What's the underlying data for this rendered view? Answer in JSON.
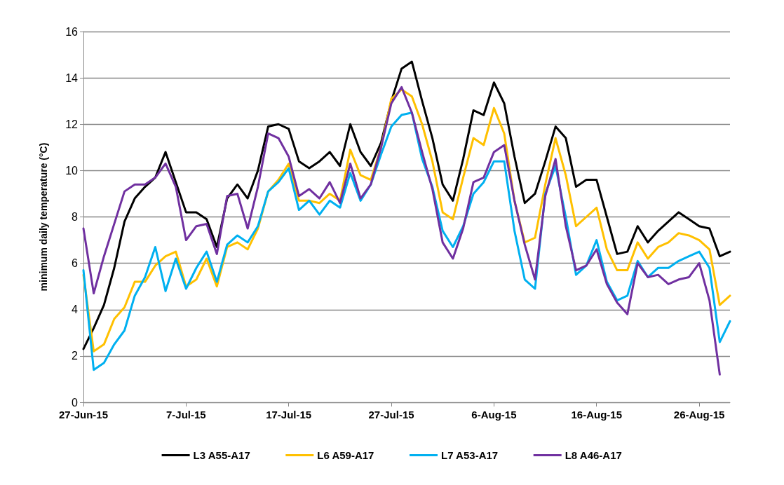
{
  "chart_data": {
    "type": "line",
    "ylabel": "minimum daily temperature (°C)",
    "x": [
      "--06-27",
      "--06-28",
      "--06-29",
      "--06-30",
      "--07-01",
      "--07-02",
      "--07-03",
      "--07-04",
      "--07-05",
      "--07-06",
      "--07-07",
      "--07-08",
      "--07-09",
      "--07-10",
      "--07-11",
      "--07-12",
      "--07-13",
      "--07-14",
      "--07-15",
      "--07-16",
      "--07-17",
      "--07-18",
      "--07-19",
      "--07-20",
      "--07-21",
      "--07-22",
      "--07-23",
      "--07-24",
      "--07-25",
      "--07-26",
      "--07-27",
      "--07-28",
      "--07-29",
      "--07-30",
      "--07-31",
      "--08-01",
      "--08-02",
      "--08-03",
      "--08-04",
      "--08-05",
      "--08-06",
      "--08-07",
      "--08-08",
      "--08-09",
      "--08-10",
      "--08-11",
      "--08-12",
      "--08-13",
      "--08-14",
      "--08-15",
      "--08-16",
      "--08-17",
      "--08-18",
      "--08-19",
      "--08-20",
      "--08-21",
      "--08-22",
      "--08-23",
      "--08-24",
      "--08-25",
      "--08-26",
      "--08-27",
      "--08-28",
      "--08-29"
    ],
    "series": [
      {
        "name": "L3 A55-A17",
        "color": "#000000",
        "values": [
          2.3,
          3.2,
          4.2,
          5.8,
          7.8,
          8.8,
          9.3,
          9.7,
          10.8,
          9.5,
          8.2,
          8.2,
          7.9,
          6.7,
          8.8,
          9.4,
          8.8,
          10.0,
          11.9,
          12.0,
          11.8,
          10.4,
          10.1,
          10.4,
          10.8,
          10.2,
          12.0,
          10.8,
          10.2,
          11.2,
          13.0,
          14.4,
          14.7,
          13.0,
          11.4,
          9.4,
          8.7,
          10.5,
          12.6,
          12.4,
          13.8,
          12.9,
          10.6,
          8.6,
          9.0,
          10.4,
          11.9,
          11.4,
          9.3,
          9.6,
          9.6,
          8.0,
          6.4,
          6.5,
          7.6,
          6.9,
          7.4,
          7.8,
          8.2,
          7.9,
          7.6,
          7.5,
          6.3,
          6.5
        ]
      },
      {
        "name": "L6 A59-A17",
        "color": "#ffc000",
        "values": [
          5.5,
          2.2,
          2.5,
          3.6,
          4.1,
          5.2,
          5.2,
          5.9,
          6.3,
          6.5,
          5.0,
          5.3,
          6.2,
          5.0,
          6.7,
          6.9,
          6.6,
          7.5,
          9.1,
          9.6,
          10.3,
          8.7,
          8.7,
          8.6,
          9.0,
          8.7,
          10.9,
          9.8,
          9.6,
          11.0,
          13.1,
          13.5,
          13.2,
          12.0,
          10.4,
          8.2,
          7.9,
          9.7,
          11.4,
          11.1,
          12.7,
          11.6,
          8.7,
          6.9,
          7.1,
          9.4,
          11.4,
          9.8,
          7.6,
          8.0,
          8.4,
          6.6,
          5.7,
          5.7,
          6.9,
          6.2,
          6.7,
          6.9,
          7.3,
          7.2,
          7.0,
          6.6,
          4.2,
          4.6
        ]
      },
      {
        "name": "L7 A53-A17",
        "color": "#00b0f0",
        "values": [
          5.7,
          1.4,
          1.7,
          2.5,
          3.1,
          4.6,
          5.4,
          6.7,
          4.8,
          6.2,
          4.9,
          5.8,
          6.5,
          5.2,
          6.8,
          7.2,
          6.9,
          7.6,
          9.1,
          9.5,
          10.1,
          8.3,
          8.7,
          8.1,
          8.7,
          8.4,
          9.9,
          8.7,
          9.4,
          10.7,
          11.9,
          12.4,
          12.5,
          10.5,
          9.3,
          7.4,
          6.7,
          7.6,
          9.0,
          9.5,
          10.4,
          10.4,
          7.4,
          5.3,
          4.9,
          9.0,
          10.2,
          8.0,
          5.5,
          5.9,
          7.0,
          5.2,
          4.4,
          4.6,
          6.1,
          5.4,
          5.8,
          5.8,
          6.1,
          6.3,
          6.5,
          5.8,
          2.6,
          3.5
        ]
      },
      {
        "name": "L8 A46-A17",
        "color": "#7030a0",
        "values": [
          7.5,
          4.7,
          6.3,
          7.7,
          9.1,
          9.4,
          9.4,
          9.7,
          10.3,
          9.3,
          7.0,
          7.6,
          7.7,
          6.4,
          8.9,
          9.0,
          7.5,
          9.3,
          11.6,
          11.4,
          10.6,
          8.9,
          9.2,
          8.8,
          9.5,
          8.6,
          10.3,
          8.8,
          9.4,
          11.0,
          12.9,
          13.6,
          12.5,
          10.8,
          9.2,
          6.9,
          6.2,
          7.5,
          9.5,
          9.7,
          10.8,
          11.1,
          8.7,
          6.8,
          5.3,
          8.9,
          10.5,
          7.6,
          5.7,
          5.9,
          6.6,
          5.1,
          4.3,
          3.8,
          6.0,
          5.4,
          5.5,
          5.1,
          5.3,
          5.4,
          6.0,
          4.4,
          1.2,
          null
        ]
      }
    ],
    "xlim": [
      "--06-27",
      "--08-29"
    ],
    "xticks": [
      {
        "value": "--06-27",
        "label": "27-Jun-15"
      },
      {
        "value": "--07-07",
        "label": "7-Jul-15"
      },
      {
        "value": "--07-17",
        "label": "17-Jul-15"
      },
      {
        "value": "--07-27",
        "label": "27-Jul-15"
      },
      {
        "value": "--08-06",
        "label": "6-Aug-15"
      },
      {
        "value": "--08-16",
        "label": "16-Aug-15"
      },
      {
        "value": "--08-26",
        "label": "26-Aug-15"
      }
    ],
    "ylim": [
      0,
      16
    ],
    "yticks": [
      0,
      2,
      4,
      6,
      8,
      10,
      12,
      14,
      16
    ],
    "grid": "y",
    "legend": "bottom",
    "marker": "none",
    "line_style": "solid"
  }
}
